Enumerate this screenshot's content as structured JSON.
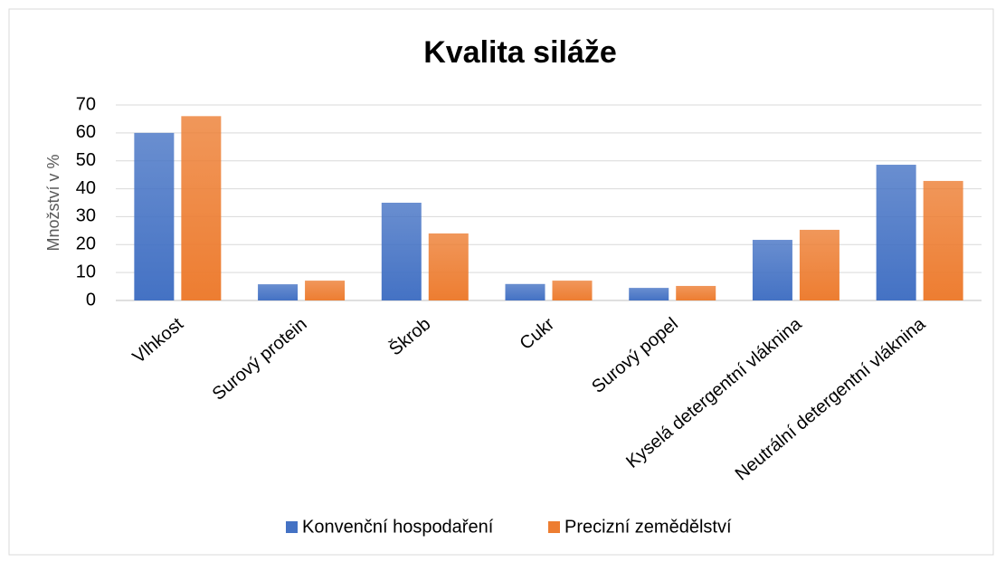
{
  "chart_data": {
    "type": "bar",
    "title": "Kvalita siláže",
    "ylabel": "Množství v %",
    "categories": [
      "Vlhkost",
      "Surový protein",
      "Škrob",
      "Cukr",
      "Surový popel",
      "Kyselá detergentní vláknina",
      "Neutrální detergentní vláknina"
    ],
    "series": [
      {
        "name": "Konvenční hospodaření",
        "color": "#4472c4",
        "values": [
          60,
          5.8,
          35,
          5.9,
          4.5,
          21.7,
          48.6
        ]
      },
      {
        "name": "Precizní zemědělství",
        "color": "#ed7d31",
        "values": [
          66,
          7.1,
          24,
          7.1,
          5.2,
          25.3,
          42.8
        ]
      }
    ],
    "ylim": [
      0,
      70
    ],
    "yticks": [
      0,
      10,
      20,
      30,
      40,
      50,
      60,
      70
    ],
    "grid": true,
    "legend": "bottom"
  }
}
